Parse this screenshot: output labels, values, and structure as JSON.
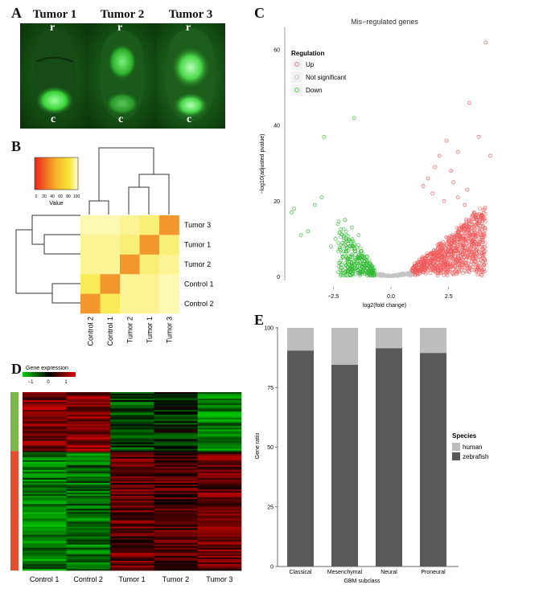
{
  "panels": {
    "A": {
      "letter": "A",
      "photos": [
        {
          "title": "Tumor 1",
          "top_label": "r",
          "bottom_label": "c"
        },
        {
          "title": "Tumor 2",
          "top_label": "r",
          "bottom_label": "c"
        },
        {
          "title": "Tumor 3",
          "top_label": "r",
          "bottom_label": "c"
        }
      ]
    },
    "B": {
      "letter": "B",
      "legend_title": "Value",
      "legend_ticks": [
        "0",
        "20",
        "40",
        "60",
        "80",
        "100"
      ],
      "row_labels": [
        "Tumor 3",
        "Tumor 1",
        "Tumor 2",
        "Control 1",
        "Control 2"
      ],
      "col_labels": [
        "Control 2",
        "Control 1",
        "Tumor 2",
        "Tumor 1",
        "Tumor 3"
      ]
    },
    "C": {
      "letter": "C"
    },
    "D": {
      "letter": "D",
      "legend_title": "Gene expression",
      "legend_ticks": [
        "−1",
        "0",
        "1"
      ],
      "col_labels": [
        "Control 1",
        "Control 2",
        "Tumor 1",
        "Tumor 2",
        "Tumor 3"
      ]
    },
    "E": {
      "letter": "E"
    }
  },
  "chart_data": [
    {
      "type": "heatmap",
      "panel": "B",
      "rows": [
        "Tumor 3",
        "Tumor 1",
        "Tumor 2",
        "Control 1",
        "Control 2"
      ],
      "columns": [
        "Control 2",
        "Control 1",
        "Tumor 2",
        "Tumor 1",
        "Tumor 3"
      ],
      "values": [
        [
          90,
          90,
          80,
          70,
          30
        ],
        [
          80,
          80,
          70,
          30,
          70
        ],
        [
          80,
          80,
          30,
          70,
          80
        ],
        [
          60,
          30,
          80,
          80,
          90
        ],
        [
          30,
          60,
          80,
          80,
          90
        ]
      ],
      "color_scale": [
        "#e8231c",
        "#f7e53a",
        "#fffdd0"
      ],
      "legend_title": "Value",
      "legend_range": [
        0,
        100
      ]
    },
    {
      "type": "scatter",
      "panel": "C",
      "title": "Mis−regulated genes",
      "xlabel": "log2(fold change)",
      "ylabel": "−log10(adjusted pvalue)",
      "xlim": [
        -4.6,
        4.6
      ],
      "ylim": [
        -1,
        66
      ],
      "x_ticks": [
        "−2.5",
        "0.0",
        "2.5"
      ],
      "y_ticks": [
        "0",
        "20",
        "40",
        "60"
      ],
      "legend_title": "Regulation",
      "legend_position": "top-left",
      "series": [
        {
          "name": "Up",
          "color": "#f05a5a",
          "points": [
            [
              4.1,
              62
            ],
            [
              3.4,
              46
            ],
            [
              4.3,
              32
            ],
            [
              3.8,
              37
            ],
            [
              2.9,
              33
            ],
            [
              2.6,
              28
            ],
            [
              2.4,
              36
            ],
            [
              2.1,
              32
            ],
            [
              1.9,
              29
            ],
            [
              1.6,
              26
            ],
            [
              1.4,
              24
            ],
            [
              2.9,
              21
            ],
            [
              3.2,
              19
            ],
            [
              3.6,
              17
            ],
            [
              3.9,
              16
            ],
            [
              2.7,
              25
            ],
            [
              3.3,
              23
            ],
            [
              1.8,
              22
            ],
            [
              2.3,
              20
            ]
          ]
        },
        {
          "name": "Not significant",
          "color": "#b8b8b8",
          "points": []
        },
        {
          "name": "Down",
          "color": "#33bb33",
          "points": [
            [
              -1.6,
              42
            ],
            [
              -2.9,
              37
            ],
            [
              -3.0,
              21
            ],
            [
              -3.3,
              19
            ],
            [
              -3.6,
              12
            ],
            [
              -3.9,
              11
            ],
            [
              -4.3,
              17
            ],
            [
              -4.2,
              18
            ],
            [
              -2.0,
              15
            ],
            [
              -1.7,
              13
            ],
            [
              -1.4,
              11
            ],
            [
              -2.4,
              10
            ],
            [
              -2.6,
              8
            ]
          ]
        }
      ]
    },
    {
      "type": "heatmap",
      "panel": "D",
      "columns": [
        "Control 1",
        "Control 2",
        "Tumor 1",
        "Tumor 2",
        "Tumor 3"
      ],
      "row_groups": [
        {
          "color": "#7ab648",
          "fraction": 0.33,
          "column_means": [
            0.8,
            0.9,
            -0.5,
            -0.3,
            -0.9
          ]
        },
        {
          "color": "#e84c2e",
          "fraction": 0.67,
          "column_means": [
            -0.9,
            -0.8,
            0.6,
            0.5,
            0.7
          ]
        }
      ],
      "legend_title": "Gene expression",
      "legend_range": [
        -1.5,
        1.5
      ],
      "color_scale": [
        "#00d000",
        "#000000",
        "#e00000"
      ]
    },
    {
      "type": "bar",
      "panel": "E",
      "stacked": true,
      "categories": [
        "Classical",
        "Mesenchymal",
        "Neural",
        "Proneural"
      ],
      "xlabel": "GBM subclass",
      "ylabel": "Gene ratio",
      "ylim": [
        0,
        100
      ],
      "y_ticks": [
        "0",
        "25",
        "50",
        "75",
        "100"
      ],
      "legend_title": "Species",
      "legend_position": "right",
      "series": [
        {
          "name": "zebrafish",
          "color": "#595959",
          "values": [
            90.5,
            84.5,
            91.5,
            89.5
          ]
        },
        {
          "name": "human",
          "color": "#bdbdbd",
          "values": [
            9.5,
            15.5,
            8.5,
            10.5
          ]
        }
      ]
    }
  ]
}
